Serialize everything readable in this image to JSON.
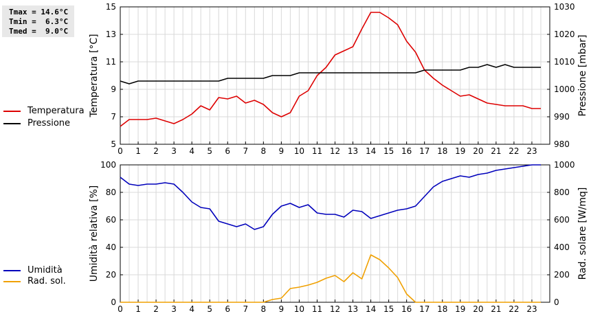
{
  "stats": {
    "tmax": "Tmax = 14.6°C",
    "tmin": "Tmin =  6.3°C",
    "tmed": "Tmed =  9.0°C"
  },
  "chart_data": [
    {
      "type": "line",
      "x_ticks": [
        "0",
        "1",
        "2",
        "3",
        "4",
        "5",
        "6",
        "7",
        "8",
        "9",
        "10",
        "11",
        "12",
        "13",
        "14",
        "15",
        "16",
        "17",
        "18",
        "19",
        "20",
        "21",
        "22",
        "23"
      ],
      "xlim": [
        0,
        24
      ],
      "ylabel_left": "Temperatura [°C]",
      "ylabel_right": "Pressione [mbar]",
      "ylim_left": [
        5,
        15
      ],
      "yticks_left": [
        "5",
        "7",
        "9",
        "11",
        "13",
        "15"
      ],
      "ylim_right": [
        980,
        1030
      ],
      "yticks_right": [
        "980",
        "990",
        "1000",
        "1010",
        "1020",
        "1030"
      ],
      "grid": true,
      "legend_position": "left",
      "series": [
        {
          "name": "Temperatura",
          "axis": "left",
          "color": "#dd0000",
          "x": [
            0,
            0.5,
            1,
            1.5,
            2,
            2.5,
            3,
            3.5,
            4,
            4.5,
            5,
            5.5,
            6,
            6.5,
            7,
            7.5,
            8,
            8.5,
            9,
            9.5,
            10,
            10.5,
            11,
            11.5,
            12,
            12.5,
            13,
            13.5,
            14,
            14.5,
            15,
            15.5,
            16,
            16.5,
            17,
            17.5,
            18,
            18.5,
            19,
            19.5,
            20,
            20.5,
            21,
            21.5,
            22,
            22.5,
            23,
            23.5
          ],
          "y": [
            6.3,
            6.8,
            6.8,
            6.8,
            6.9,
            6.7,
            6.5,
            6.8,
            7.2,
            7.8,
            7.5,
            8.4,
            8.3,
            8.5,
            8.0,
            8.2,
            7.9,
            7.3,
            7.0,
            7.3,
            8.5,
            8.9,
            10.0,
            10.6,
            11.5,
            11.8,
            12.1,
            13.4,
            14.6,
            14.6,
            14.2,
            13.7,
            12.5,
            11.7,
            10.4,
            9.8,
            9.3,
            8.9,
            8.5,
            8.6,
            8.3,
            8.0,
            7.9,
            7.8,
            7.8,
            7.8,
            7.6,
            7.6
          ]
        },
        {
          "name": "Pressione",
          "axis": "right",
          "color": "#000000",
          "x": [
            0,
            0.5,
            1,
            1.5,
            2,
            2.5,
            3,
            3.5,
            4,
            4.5,
            5,
            5.5,
            6,
            6.5,
            7,
            7.5,
            8,
            8.5,
            9,
            9.5,
            10,
            10.5,
            11,
            11.5,
            12,
            12.5,
            13,
            13.5,
            14,
            14.5,
            15,
            15.5,
            16,
            16.5,
            17,
            17.5,
            18,
            18.5,
            19,
            19.5,
            20,
            20.5,
            21,
            21.5,
            22,
            22.5,
            23,
            23.5
          ],
          "y": [
            1003,
            1002,
            1003,
            1003,
            1003,
            1003,
            1003,
            1003,
            1003,
            1003,
            1003,
            1003,
            1004,
            1004,
            1004,
            1004,
            1004,
            1005,
            1005,
            1005,
            1006,
            1006,
            1006,
            1006,
            1006,
            1006,
            1006,
            1006,
            1006,
            1006,
            1006,
            1006,
            1006,
            1006,
            1007,
            1007,
            1007,
            1007,
            1007,
            1008,
            1008,
            1009,
            1008,
            1009,
            1008,
            1008,
            1008,
            1008
          ]
        }
      ]
    },
    {
      "type": "line",
      "x_ticks": [
        "0",
        "1",
        "2",
        "3",
        "4",
        "5",
        "6",
        "7",
        "8",
        "9",
        "10",
        "11",
        "12",
        "13",
        "14",
        "15",
        "16",
        "17",
        "18",
        "19",
        "20",
        "21",
        "22",
        "23"
      ],
      "xlim": [
        0,
        24
      ],
      "ylabel_left": "Umidità relativa [%]",
      "ylabel_right": "Rad. solare [W/mq]",
      "ylim_left": [
        0,
        100
      ],
      "yticks_left": [
        "0",
        "20",
        "40",
        "60",
        "80",
        "100"
      ],
      "ylim_right": [
        0,
        1000
      ],
      "yticks_right": [
        "0",
        "200",
        "400",
        "600",
        "800",
        "1000"
      ],
      "grid": true,
      "legend_position": "left",
      "series": [
        {
          "name": "Umidità",
          "axis": "left",
          "color": "#0000bb",
          "x": [
            0,
            0.5,
            1,
            1.5,
            2,
            2.5,
            3,
            3.5,
            4,
            4.5,
            5,
            5.5,
            6,
            6.5,
            7,
            7.5,
            8,
            8.5,
            9,
            9.5,
            10,
            10.5,
            11,
            11.5,
            12,
            12.5,
            13,
            13.5,
            14,
            14.5,
            15,
            15.5,
            16,
            16.5,
            17,
            17.5,
            18,
            18.5,
            19,
            19.5,
            20,
            20.5,
            21,
            21.5,
            22,
            22.5,
            23,
            23.5
          ],
          "y": [
            91,
            86,
            85,
            86,
            86,
            87,
            86,
            80,
            73,
            69,
            68,
            59,
            57,
            55,
            57,
            53,
            55,
            64,
            70,
            72,
            69,
            71,
            65,
            64,
            64,
            62,
            67,
            66,
            61,
            63,
            65,
            67,
            68,
            70,
            77,
            84,
            88,
            90,
            92,
            91,
            93,
            94,
            96,
            97,
            98,
            99,
            100,
            100
          ]
        },
        {
          "name": "Rad. sol.",
          "axis": "right",
          "color": "#f0a000",
          "x": [
            0,
            0.5,
            1,
            1.5,
            2,
            2.5,
            3,
            3.5,
            4,
            4.5,
            5,
            5.5,
            6,
            6.5,
            7,
            7.5,
            8,
            8.5,
            9,
            9.5,
            10,
            10.5,
            11,
            11.5,
            12,
            12.5,
            13,
            13.5,
            14,
            14.5,
            15,
            15.5,
            16,
            16.5,
            17,
            17.5,
            18,
            18.5,
            19,
            19.5,
            20,
            20.5,
            21,
            21.5,
            22,
            22.5,
            23,
            23.5
          ],
          "y": [
            0,
            0,
            0,
            0,
            0,
            0,
            0,
            0,
            0,
            0,
            0,
            0,
            0,
            0,
            0,
            0,
            0,
            20,
            30,
            100,
            110,
            125,
            145,
            175,
            195,
            150,
            215,
            170,
            345,
            310,
            250,
            180,
            60,
            0,
            0,
            0,
            0,
            0,
            0,
            0,
            0,
            0,
            0,
            0,
            0,
            0,
            0,
            0
          ]
        }
      ]
    }
  ]
}
